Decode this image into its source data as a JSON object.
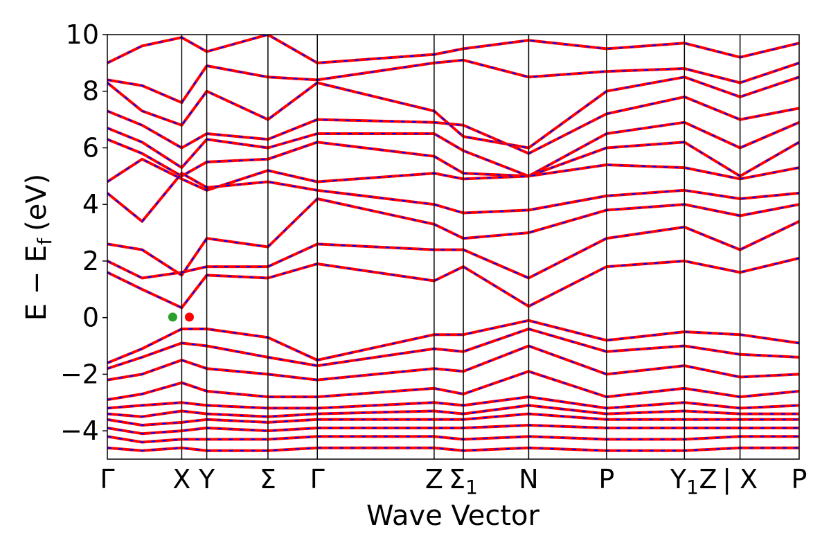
{
  "chart_data": {
    "type": "line",
    "title": "",
    "xlabel": "Wave Vector",
    "ylabel": "E − E",
    "ylabel_sub": "f",
    "ylabel_unit": "(eV)",
    "ylim": [
      -5,
      10
    ],
    "yticks": [
      10,
      8,
      6,
      4,
      2,
      0,
      -2,
      -4
    ],
    "ytick_labels": [
      "10",
      "8",
      "6",
      "4",
      "2",
      "0",
      "−2",
      "−4"
    ],
    "grid": false,
    "legend": null,
    "kpath_positions": [
      0,
      1.07,
      1.43,
      2.31,
      3.02,
      4.7,
      5.12,
      6.06,
      7.18,
      8.3,
      9.1,
      9.95
    ],
    "kpoints": [
      {
        "label": "Γ",
        "sub": "",
        "x": 0
      },
      {
        "label": "X",
        "sub": "",
        "x": 1.07
      },
      {
        "label": "Y",
        "sub": "",
        "x": 1.43
      },
      {
        "label": "Σ",
        "sub": "",
        "x": 2.31
      },
      {
        "label": "Γ",
        "sub": "",
        "x": 3.02
      },
      {
        "label": "Z",
        "sub": "",
        "x": 4.7
      },
      {
        "label": "Σ",
        "sub": "1",
        "x": 5.12
      },
      {
        "label": "N",
        "sub": "",
        "x": 6.06
      },
      {
        "label": "P",
        "sub": "",
        "x": 7.18
      },
      {
        "label": "Y",
        "sub": "1",
        "x": 8.3
      },
      {
        "label": "Z",
        "sub": "",
        "x": 8.64
      },
      {
        "label": "| X",
        "sub": "",
        "x": 9.1
      },
      {
        "label": "P",
        "sub": "",
        "x": 9.95
      }
    ],
    "xlim": [
      0,
      9.95
    ],
    "series_styles": [
      {
        "name": "",
        "color": "#ff0000",
        "style": "solid"
      },
      {
        "name": "",
        "color": "#0000ff",
        "style": "dashed"
      }
    ],
    "markers": [
      {
        "x": 0.94,
        "y": 0.02,
        "color": "#2ca02c"
      },
      {
        "x": 1.18,
        "y": 0.02,
        "color": "#ff0000"
      }
    ],
    "series": [
      {
        "name": "",
        "points": [
          [
            0,
            9.0
          ],
          [
            0.5,
            9.6
          ],
          [
            1.07,
            9.9
          ],
          [
            1.43,
            9.4
          ],
          [
            2.31,
            10.0
          ],
          [
            3.02,
            9.0
          ],
          [
            4.7,
            9.3
          ],
          [
            5.12,
            9.5
          ],
          [
            6.06,
            9.8
          ],
          [
            7.18,
            9.5
          ],
          [
            8.3,
            9.7
          ],
          [
            9.1,
            9.2
          ],
          [
            9.95,
            9.7
          ]
        ]
      },
      {
        "name": "",
        "points": [
          [
            0,
            8.4
          ],
          [
            0.5,
            8.2
          ],
          [
            1.07,
            7.6
          ],
          [
            1.43,
            8.9
          ],
          [
            2.31,
            8.5
          ],
          [
            3.02,
            8.4
          ],
          [
            4.7,
            9.0
          ],
          [
            5.12,
            9.1
          ],
          [
            6.06,
            8.5
          ],
          [
            7.18,
            8.7
          ],
          [
            8.3,
            8.8
          ],
          [
            9.1,
            8.3
          ],
          [
            9.95,
            9.0
          ]
        ]
      },
      {
        "name": "",
        "points": [
          [
            0,
            8.3
          ],
          [
            0.5,
            7.3
          ],
          [
            1.07,
            6.8
          ],
          [
            1.43,
            8.0
          ],
          [
            2.31,
            7.0
          ],
          [
            3.02,
            8.3
          ],
          [
            4.7,
            7.3
          ],
          [
            5.12,
            6.4
          ],
          [
            6.06,
            6.0
          ],
          [
            7.18,
            8.0
          ],
          [
            8.3,
            8.5
          ],
          [
            9.1,
            7.8
          ],
          [
            9.95,
            8.5
          ]
        ]
      },
      {
        "name": "",
        "points": [
          [
            0,
            7.3
          ],
          [
            0.5,
            6.8
          ],
          [
            1.07,
            6.0
          ],
          [
            1.43,
            6.5
          ],
          [
            2.31,
            6.3
          ],
          [
            3.02,
            7.0
          ],
          [
            4.7,
            6.9
          ],
          [
            5.12,
            6.8
          ],
          [
            6.06,
            5.8
          ],
          [
            7.18,
            7.2
          ],
          [
            8.3,
            7.8
          ],
          [
            9.1,
            7.0
          ],
          [
            9.95,
            7.4
          ]
        ]
      },
      {
        "name": "",
        "points": [
          [
            0,
            6.7
          ],
          [
            0.5,
            6.2
          ],
          [
            1.07,
            5.3
          ],
          [
            1.43,
            6.3
          ],
          [
            2.31,
            6.0
          ],
          [
            3.02,
            6.5
          ],
          [
            4.7,
            6.5
          ],
          [
            5.12,
            5.9
          ],
          [
            6.06,
            5.0
          ],
          [
            7.18,
            6.5
          ],
          [
            8.3,
            6.9
          ],
          [
            9.1,
            6.0
          ],
          [
            9.95,
            6.9
          ]
        ]
      },
      {
        "name": "",
        "points": [
          [
            0,
            6.3
          ],
          [
            0.5,
            5.8
          ],
          [
            1.07,
            5.0
          ],
          [
            1.43,
            5.5
          ],
          [
            2.31,
            5.6
          ],
          [
            3.02,
            6.2
          ],
          [
            4.7,
            5.7
          ],
          [
            5.12,
            5.1
          ],
          [
            6.06,
            5.0
          ],
          [
            7.18,
            6.0
          ],
          [
            8.3,
            6.2
          ],
          [
            9.1,
            5.0
          ],
          [
            9.95,
            6.2
          ]
        ]
      },
      {
        "name": "",
        "points": [
          [
            0,
            4.8
          ],
          [
            0.5,
            5.6
          ],
          [
            1.07,
            4.9
          ],
          [
            1.43,
            4.5
          ],
          [
            2.31,
            5.2
          ],
          [
            3.02,
            4.8
          ],
          [
            4.7,
            5.1
          ],
          [
            5.12,
            4.9
          ],
          [
            6.06,
            5.0
          ],
          [
            7.18,
            5.4
          ],
          [
            8.3,
            5.3
          ],
          [
            9.1,
            4.9
          ],
          [
            9.95,
            5.3
          ]
        ]
      },
      {
        "name": "",
        "points": [
          [
            0,
            4.4
          ],
          [
            0.5,
            3.4
          ],
          [
            1.07,
            5.1
          ],
          [
            1.43,
            4.6
          ],
          [
            2.31,
            4.8
          ],
          [
            3.02,
            4.5
          ],
          [
            4.7,
            4.0
          ],
          [
            5.12,
            3.7
          ],
          [
            6.06,
            3.8
          ],
          [
            7.18,
            4.3
          ],
          [
            8.3,
            4.5
          ],
          [
            9.1,
            4.2
          ],
          [
            9.95,
            4.4
          ]
        ]
      },
      {
        "name": "",
        "points": [
          [
            0,
            2.6
          ],
          [
            0.5,
            2.4
          ],
          [
            1.07,
            1.5
          ],
          [
            1.43,
            2.8
          ],
          [
            2.31,
            2.5
          ],
          [
            3.02,
            4.2
          ],
          [
            4.7,
            3.3
          ],
          [
            5.12,
            2.8
          ],
          [
            6.06,
            3.0
          ],
          [
            7.18,
            3.8
          ],
          [
            8.3,
            4.0
          ],
          [
            9.1,
            3.6
          ],
          [
            9.95,
            4.0
          ]
        ]
      },
      {
        "name": "",
        "points": [
          [
            0,
            2.0
          ],
          [
            0.5,
            1.4
          ],
          [
            1.07,
            1.6
          ],
          [
            1.43,
            1.8
          ],
          [
            2.31,
            1.8
          ],
          [
            3.02,
            2.6
          ],
          [
            4.7,
            2.4
          ],
          [
            5.12,
            2.4
          ],
          [
            6.06,
            1.4
          ],
          [
            7.18,
            2.8
          ],
          [
            8.3,
            3.2
          ],
          [
            9.1,
            2.4
          ],
          [
            9.95,
            3.4
          ]
        ]
      },
      {
        "name": "",
        "points": [
          [
            0,
            1.6
          ],
          [
            0.5,
            1.0
          ],
          [
            1.07,
            0.35
          ],
          [
            1.43,
            1.5
          ],
          [
            2.31,
            1.4
          ],
          [
            3.02,
            1.9
          ],
          [
            4.7,
            1.3
          ],
          [
            5.12,
            1.8
          ],
          [
            6.06,
            0.4
          ],
          [
            7.18,
            1.8
          ],
          [
            8.3,
            2.0
          ],
          [
            9.1,
            1.6
          ],
          [
            9.95,
            2.1
          ]
        ]
      },
      {
        "name": "",
        "points": [
          [
            0,
            -1.6
          ],
          [
            0.5,
            -1.1
          ],
          [
            1.07,
            -0.4
          ],
          [
            1.43,
            -0.4
          ],
          [
            2.31,
            -0.7
          ],
          [
            3.02,
            -1.5
          ],
          [
            4.7,
            -0.6
          ],
          [
            5.12,
            -0.6
          ],
          [
            6.06,
            -0.1
          ],
          [
            7.18,
            -0.8
          ],
          [
            8.3,
            -0.5
          ],
          [
            9.1,
            -0.6
          ],
          [
            9.95,
            -0.9
          ]
        ]
      },
      {
        "name": "",
        "points": [
          [
            0,
            -1.8
          ],
          [
            0.5,
            -1.4
          ],
          [
            1.07,
            -0.9
          ],
          [
            1.43,
            -1.0
          ],
          [
            2.31,
            -1.4
          ],
          [
            3.02,
            -1.7
          ],
          [
            4.7,
            -1.1
          ],
          [
            5.12,
            -1.2
          ],
          [
            6.06,
            -0.4
          ],
          [
            7.18,
            -1.2
          ],
          [
            8.3,
            -1.0
          ],
          [
            9.1,
            -1.3
          ],
          [
            9.95,
            -1.4
          ]
        ]
      },
      {
        "name": "",
        "points": [
          [
            0,
            -2.2
          ],
          [
            0.5,
            -2.0
          ],
          [
            1.07,
            -1.5
          ],
          [
            1.43,
            -1.8
          ],
          [
            2.31,
            -2.0
          ],
          [
            3.02,
            -2.2
          ],
          [
            4.7,
            -1.8
          ],
          [
            5.12,
            -1.9
          ],
          [
            6.06,
            -1.0
          ],
          [
            7.18,
            -2.0
          ],
          [
            8.3,
            -1.7
          ],
          [
            9.1,
            -2.1
          ],
          [
            9.95,
            -2.0
          ]
        ]
      },
      {
        "name": "",
        "points": [
          [
            0,
            -2.9
          ],
          [
            0.5,
            -2.7
          ],
          [
            1.07,
            -2.3
          ],
          [
            1.43,
            -2.6
          ],
          [
            2.31,
            -2.8
          ],
          [
            3.02,
            -2.8
          ],
          [
            4.7,
            -2.5
          ],
          [
            5.12,
            -2.7
          ],
          [
            6.06,
            -1.9
          ],
          [
            7.18,
            -2.8
          ],
          [
            8.3,
            -2.5
          ],
          [
            9.1,
            -2.8
          ],
          [
            9.95,
            -2.6
          ]
        ]
      },
      {
        "name": "",
        "points": [
          [
            0,
            -3.2
          ],
          [
            0.5,
            -3.1
          ],
          [
            1.07,
            -3.0
          ],
          [
            1.43,
            -3.1
          ],
          [
            2.31,
            -3.2
          ],
          [
            3.02,
            -3.2
          ],
          [
            4.7,
            -3.0
          ],
          [
            5.12,
            -3.1
          ],
          [
            6.06,
            -2.8
          ],
          [
            7.18,
            -3.2
          ],
          [
            8.3,
            -3.0
          ],
          [
            9.1,
            -3.2
          ],
          [
            9.95,
            -3.1
          ]
        ]
      },
      {
        "name": "",
        "points": [
          [
            0,
            -3.4
          ],
          [
            0.5,
            -3.5
          ],
          [
            1.07,
            -3.3
          ],
          [
            1.43,
            -3.4
          ],
          [
            2.31,
            -3.5
          ],
          [
            3.02,
            -3.4
          ],
          [
            4.7,
            -3.3
          ],
          [
            5.12,
            -3.4
          ],
          [
            6.06,
            -3.1
          ],
          [
            7.18,
            -3.4
          ],
          [
            8.3,
            -3.3
          ],
          [
            9.1,
            -3.4
          ],
          [
            9.95,
            -3.4
          ]
        ]
      },
      {
        "name": "",
        "points": [
          [
            0,
            -3.6
          ],
          [
            0.5,
            -3.8
          ],
          [
            1.07,
            -3.7
          ],
          [
            1.43,
            -3.6
          ],
          [
            2.31,
            -3.7
          ],
          [
            3.02,
            -3.6
          ],
          [
            4.7,
            -3.6
          ],
          [
            5.12,
            -3.6
          ],
          [
            6.06,
            -3.4
          ],
          [
            7.18,
            -3.6
          ],
          [
            8.3,
            -3.6
          ],
          [
            9.1,
            -3.6
          ],
          [
            9.95,
            -3.6
          ]
        ]
      },
      {
        "name": "",
        "points": [
          [
            0,
            -3.9
          ],
          [
            0.5,
            -4.1
          ],
          [
            1.07,
            -4.0
          ],
          [
            1.43,
            -3.9
          ],
          [
            2.31,
            -4.0
          ],
          [
            3.02,
            -3.9
          ],
          [
            4.7,
            -3.9
          ],
          [
            5.12,
            -3.9
          ],
          [
            6.06,
            -3.8
          ],
          [
            7.18,
            -3.9
          ],
          [
            8.3,
            -3.9
          ],
          [
            9.1,
            -3.9
          ],
          [
            9.95,
            -3.9
          ]
        ]
      },
      {
        "name": "",
        "points": [
          [
            0,
            -4.2
          ],
          [
            0.5,
            -4.4
          ],
          [
            1.07,
            -4.3
          ],
          [
            1.43,
            -4.3
          ],
          [
            2.31,
            -4.3
          ],
          [
            3.02,
            -4.2
          ],
          [
            4.7,
            -4.2
          ],
          [
            5.12,
            -4.3
          ],
          [
            6.06,
            -4.2
          ],
          [
            7.18,
            -4.3
          ],
          [
            8.3,
            -4.3
          ],
          [
            9.1,
            -4.2
          ],
          [
            9.95,
            -4.2
          ]
        ]
      },
      {
        "name": "",
        "points": [
          [
            0,
            -4.6
          ],
          [
            0.5,
            -4.7
          ],
          [
            1.07,
            -4.6
          ],
          [
            1.43,
            -4.7
          ],
          [
            2.31,
            -4.7
          ],
          [
            3.02,
            -4.6
          ],
          [
            4.7,
            -4.6
          ],
          [
            5.12,
            -4.7
          ],
          [
            6.06,
            -4.6
          ],
          [
            7.18,
            -4.7
          ],
          [
            8.3,
            -4.7
          ],
          [
            9.1,
            -4.6
          ],
          [
            9.95,
            -4.6
          ]
        ]
      }
    ]
  }
}
